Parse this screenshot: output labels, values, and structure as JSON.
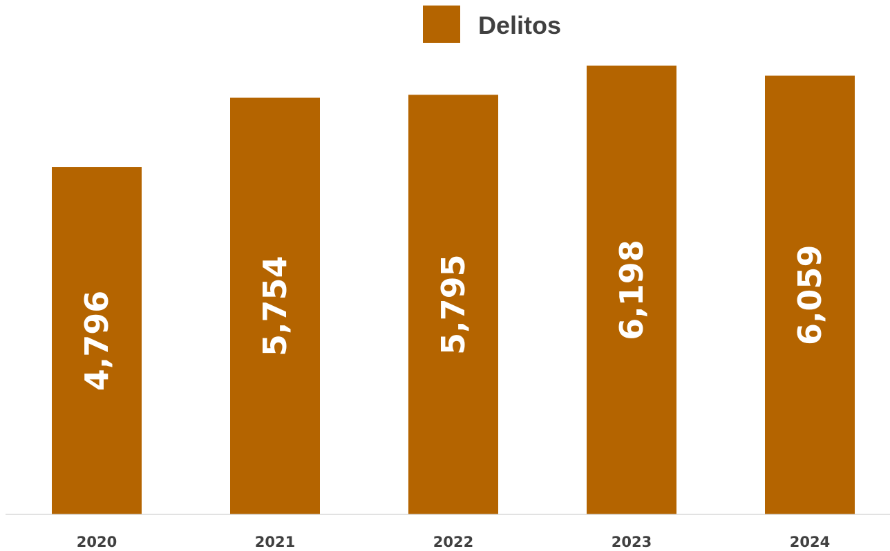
{
  "chart_data": {
    "type": "bar",
    "categories": [
      "2020",
      "2021",
      "2022",
      "2023",
      "2024"
    ],
    "series": [
      {
        "name": "Delitos",
        "values": [
          4796,
          5754,
          5795,
          6198,
          6059
        ],
        "labels": [
          "4,796",
          "5,754",
          "5,795",
          "6,198",
          "6,059"
        ],
        "color": "#B46400"
      }
    ],
    "title": "",
    "xlabel": "",
    "ylabel": "",
    "ylim": [
      0,
      6450
    ],
    "grid": false,
    "legend": "top-right",
    "data_label_orientation": "vertical",
    "axis_line_color": "#D9D9D9",
    "text_color": "#404040"
  }
}
